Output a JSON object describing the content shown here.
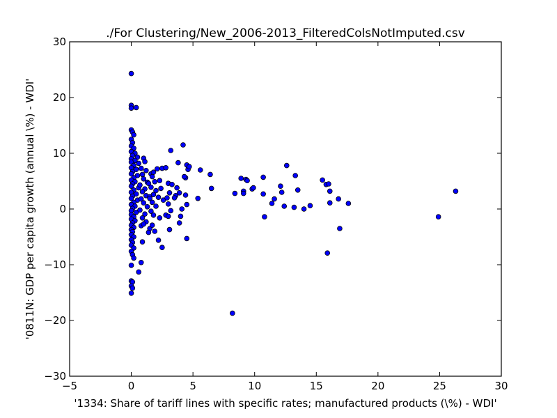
{
  "chart_data": {
    "type": "scatter",
    "title": "./For Clustering/New_2006-2013_FilteredColsNotImputed.csv",
    "xlabel": "'1334: Share of tariff lines with specific rates; manufactured products  (\\%) - WDI'",
    "ylabel": "'0811N: GDP per capita growth  (annual \\%) - WDI'",
    "xlim": [
      -5,
      30
    ],
    "ylim": [
      -30,
      30
    ],
    "xticks": [
      -5,
      0,
      5,
      10,
      15,
      20,
      25,
      30
    ],
    "yticks": [
      -30,
      -20,
      -10,
      0,
      10,
      20,
      30
    ],
    "xtick_labels": [
      "−5",
      "0",
      "5",
      "10",
      "15",
      "20",
      "25",
      "30"
    ],
    "ytick_labels": [
      "−30",
      "−20",
      "−10",
      "0",
      "10",
      "20",
      "30"
    ],
    "grid": false,
    "marker_color": "#0000ff",
    "marker_edge_color": "#000000",
    "points": [
      [
        0.0,
        24.3
      ],
      [
        0.0,
        18.6
      ],
      [
        0.0,
        18.1
      ],
      [
        0.4,
        18.2
      ],
      [
        0.0,
        14.2
      ],
      [
        0.1,
        13.8
      ],
      [
        0.2,
        13.3
      ],
      [
        0.0,
        12.5
      ],
      [
        0.1,
        11.9
      ],
      [
        0.0,
        11.3
      ],
      [
        0.2,
        10.9
      ],
      [
        0.0,
        10.3
      ],
      [
        0.3,
        10.0
      ],
      [
        0.1,
        9.6
      ],
      [
        0.5,
        9.3
      ],
      [
        0.0,
        9.0
      ],
      [
        0.3,
        8.7
      ],
      [
        0.0,
        8.4
      ],
      [
        0.6,
        8.2
      ],
      [
        0.2,
        7.8
      ],
      [
        0.0,
        7.4
      ],
      [
        0.4,
        7.1
      ],
      [
        0.1,
        6.7
      ],
      [
        0.0,
        6.3
      ],
      [
        0.5,
        6.0
      ],
      [
        0.2,
        5.6
      ],
      [
        0.0,
        5.2
      ],
      [
        0.3,
        4.9
      ],
      [
        0.1,
        4.5
      ],
      [
        0.0,
        4.1
      ],
      [
        0.6,
        3.8
      ],
      [
        0.2,
        3.4
      ],
      [
        0.0,
        3.0
      ],
      [
        0.4,
        2.7
      ],
      [
        0.1,
        2.3
      ],
      [
        0.0,
        1.9
      ],
      [
        0.5,
        1.6
      ],
      [
        0.2,
        1.2
      ],
      [
        0.0,
        0.8
      ],
      [
        0.3,
        0.5
      ],
      [
        0.1,
        0.1
      ],
      [
        0.0,
        -0.3
      ],
      [
        0.4,
        -0.6
      ],
      [
        0.0,
        -1.0
      ],
      [
        0.2,
        -1.4
      ],
      [
        0.0,
        -1.8
      ],
      [
        0.3,
        -2.1
      ],
      [
        0.1,
        -2.5
      ],
      [
        0.0,
        -2.9
      ],
      [
        0.2,
        -3.3
      ],
      [
        0.0,
        -3.7
      ],
      [
        0.1,
        -4.1
      ],
      [
        0.0,
        -4.6
      ],
      [
        0.2,
        -5.0
      ],
      [
        0.0,
        -5.5
      ],
      [
        0.1,
        -6.0
      ],
      [
        0.0,
        -6.5
      ],
      [
        0.2,
        -7.0
      ],
      [
        0.0,
        -7.6
      ],
      [
        0.1,
        -8.2
      ],
      [
        0.2,
        -8.8
      ],
      [
        0.0,
        -10.1
      ],
      [
        0.0,
        -12.9
      ],
      [
        0.1,
        -13.1
      ],
      [
        0.0,
        -13.8
      ],
      [
        0.1,
        -14.2
      ],
      [
        0.0,
        -15.1
      ],
      [
        0.6,
        -11.3
      ],
      [
        0.8,
        -9.6
      ],
      [
        0.9,
        -5.9
      ],
      [
        1.0,
        9.1
      ],
      [
        1.1,
        8.5
      ],
      [
        0.8,
        7.3
      ],
      [
        1.2,
        6.9
      ],
      [
        0.9,
        6.2
      ],
      [
        1.0,
        5.4
      ],
      [
        1.3,
        4.8
      ],
      [
        0.7,
        4.3
      ],
      [
        1.1,
        3.6
      ],
      [
        0.9,
        3.1
      ],
      [
        1.2,
        2.4
      ],
      [
        0.8,
        1.8
      ],
      [
        1.0,
        1.1
      ],
      [
        1.3,
        0.4
      ],
      [
        0.7,
        -0.2
      ],
      [
        1.1,
        -0.9
      ],
      [
        0.9,
        -1.6
      ],
      [
        1.2,
        -2.3
      ],
      [
        0.8,
        -3.0
      ],
      [
        1.0,
        -2.7
      ],
      [
        1.4,
        4.6
      ],
      [
        1.5,
        2.2
      ],
      [
        1.6,
        6.3
      ],
      [
        1.8,
        6.6
      ],
      [
        1.7,
        5.8
      ],
      [
        1.9,
        4.9
      ],
      [
        1.6,
        3.9
      ],
      [
        2.0,
        3.3
      ],
      [
        1.8,
        2.6
      ],
      [
        1.5,
        1.9
      ],
      [
        1.7,
        1.2
      ],
      [
        2.0,
        0.5
      ],
      [
        1.6,
        -0.4
      ],
      [
        1.8,
        -1.1
      ],
      [
        1.5,
        -3.5
      ],
      [
        1.4,
        -4.2
      ],
      [
        1.9,
        -4.0
      ],
      [
        1.7,
        -2.9
      ],
      [
        2.1,
        7.2
      ],
      [
        2.5,
        7.3
      ],
      [
        2.3,
        5.1
      ],
      [
        2.4,
        3.7
      ],
      [
        2.2,
        2.1
      ],
      [
        2.6,
        1.6
      ],
      [
        2.3,
        -1.6
      ],
      [
        2.2,
        -5.6
      ],
      [
        2.5,
        -6.9
      ],
      [
        2.8,
        7.4
      ],
      [
        3.2,
        10.5
      ],
      [
        3.0,
        4.6
      ],
      [
        3.3,
        4.4
      ],
      [
        3.1,
        2.9
      ],
      [
        2.9,
        2.0
      ],
      [
        3.0,
        0.9
      ],
      [
        3.2,
        -0.3
      ],
      [
        2.8,
        -1.1
      ],
      [
        3.0,
        -1.3
      ],
      [
        3.1,
        -3.7
      ],
      [
        3.6,
        2.4
      ],
      [
        3.8,
        8.3
      ],
      [
        3.7,
        3.8
      ],
      [
        3.9,
        2.9
      ],
      [
        3.5,
        2.0
      ],
      [
        4.0,
        -1.3
      ],
      [
        4.1,
        0.0
      ],
      [
        3.9,
        -2.5
      ],
      [
        4.2,
        11.5
      ],
      [
        4.4,
        5.6
      ],
      [
        4.5,
        7.9
      ],
      [
        4.6,
        7.1
      ],
      [
        4.7,
        7.6
      ],
      [
        4.3,
        5.8
      ],
      [
        4.4,
        2.5
      ],
      [
        4.5,
        0.8
      ],
      [
        4.5,
        -5.3
      ],
      [
        5.4,
        1.9
      ],
      [
        5.6,
        7.0
      ],
      [
        6.4,
        6.2
      ],
      [
        6.5,
        3.7
      ],
      [
        8.2,
        -18.7
      ],
      [
        8.4,
        2.8
      ],
      [
        8.9,
        5.5
      ],
      [
        9.1,
        3.2
      ],
      [
        9.1,
        2.8
      ],
      [
        9.3,
        5.3
      ],
      [
        9.4,
        5.1
      ],
      [
        9.8,
        3.6
      ],
      [
        9.9,
        3.8
      ],
      [
        10.7,
        5.7
      ],
      [
        10.7,
        2.7
      ],
      [
        10.8,
        -1.4
      ],
      [
        11.4,
        1.0
      ],
      [
        11.6,
        1.8
      ],
      [
        12.1,
        4.1
      ],
      [
        12.2,
        3.0
      ],
      [
        12.4,
        0.5
      ],
      [
        12.6,
        7.8
      ],
      [
        13.2,
        0.3
      ],
      [
        13.3,
        6.0
      ],
      [
        13.5,
        3.4
      ],
      [
        14.0,
        0.0
      ],
      [
        14.5,
        0.6
      ],
      [
        15.5,
        5.2
      ],
      [
        15.8,
        4.4
      ],
      [
        16.0,
        4.5
      ],
      [
        16.1,
        3.2
      ],
      [
        16.1,
        1.1
      ],
      [
        15.9,
        -7.9
      ],
      [
        16.8,
        1.8
      ],
      [
        16.9,
        -3.5
      ],
      [
        17.6,
        1.0
      ],
      [
        24.9,
        -1.4
      ],
      [
        26.3,
        3.2
      ]
    ]
  }
}
